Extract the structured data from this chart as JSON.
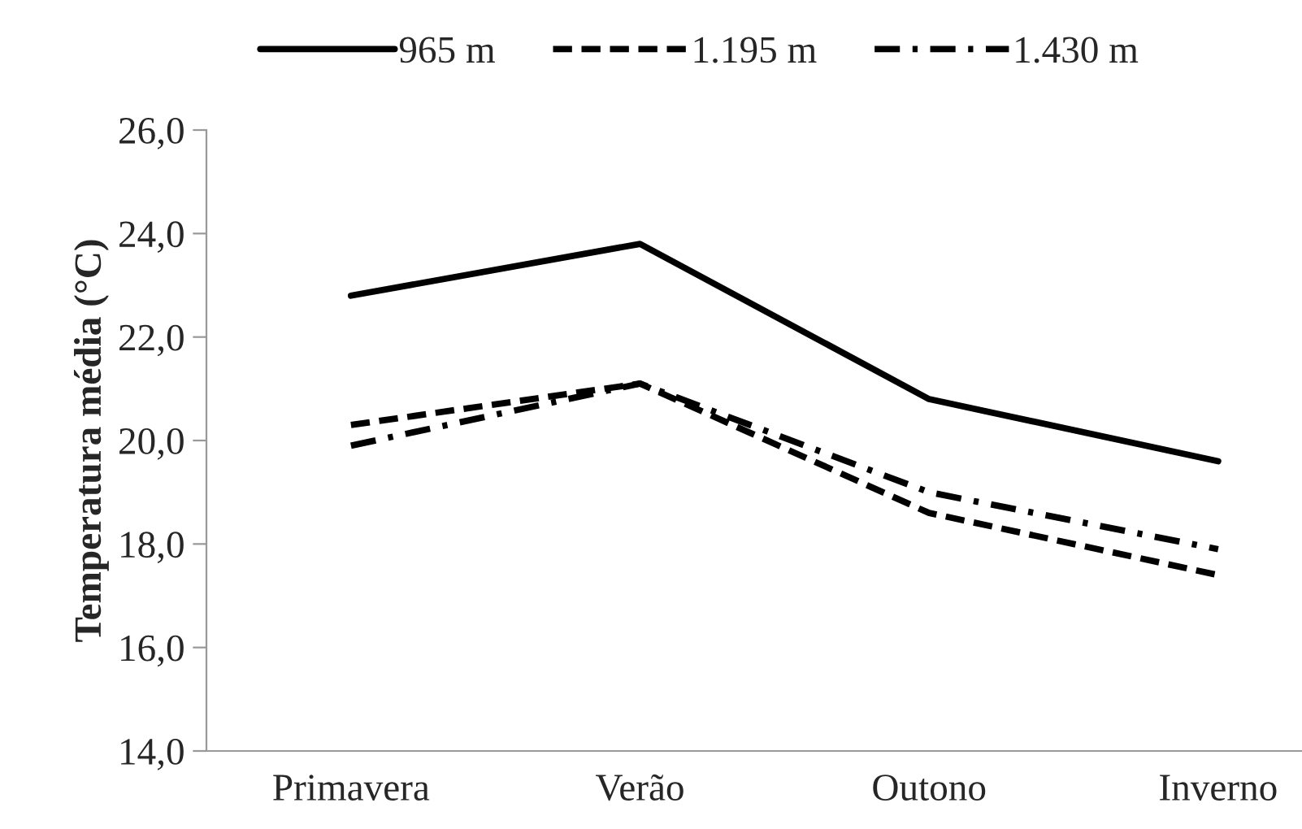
{
  "chart_data": {
    "type": "line",
    "ylabel": "Temperatura média (°C)",
    "categories": [
      "Primavera",
      "Verão",
      "Outono",
      "Inverno"
    ],
    "series": [
      {
        "name": "965 m",
        "color": "#000000",
        "line_style": "solid",
        "values": [
          22.8,
          23.8,
          20.8,
          19.6
        ]
      },
      {
        "name": "1.195 m",
        "color": "#000000",
        "line_style": "dashed",
        "values": [
          20.3,
          21.1,
          18.6,
          17.4
        ]
      },
      {
        "name": "1.430 m",
        "color": "#000000",
        "line_style": "dashdot",
        "values": [
          19.9,
          21.1,
          19.0,
          17.9
        ]
      }
    ],
    "ylim": [
      14,
      26
    ],
    "yticks": [
      {
        "value": 14,
        "label": "14,0"
      },
      {
        "value": 16,
        "label": "16,0"
      },
      {
        "value": 18,
        "label": "18,0"
      },
      {
        "value": 20,
        "label": "20,0"
      },
      {
        "value": 22,
        "label": "22,0"
      },
      {
        "value": 24,
        "label": "24,0"
      },
      {
        "value": 26,
        "label": "26,0"
      }
    ],
    "grid": false,
    "legend": "top",
    "marker": "none"
  }
}
